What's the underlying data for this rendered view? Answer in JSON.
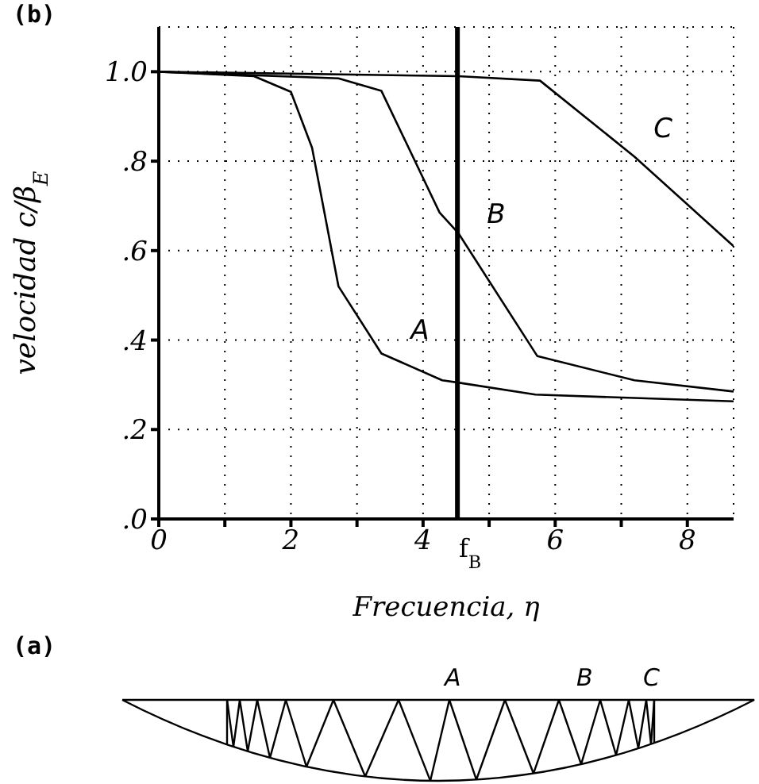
{
  "chart_data": {
    "type": "line",
    "xlabel": "Frecuencia, η",
    "ylabel": "velocidad c/β$_{E}$",
    "xlim": [
      0,
      8.7
    ],
    "xticks": [
      0,
      {
        "value": 1,
        "label": null
      },
      2,
      {
        "value": 3,
        "label": null
      },
      {
        "value": 4,
        "label": "4"
      },
      {
        "value": 5,
        "label": null
      },
      6,
      {
        "value": 7,
        "label": null
      },
      8
    ],
    "ylim": [
      0,
      1.1
    ],
    "yticks": [
      {
        "value": 0,
        "label": ".0"
      },
      {
        "value": 0.2,
        "label": ".2"
      },
      {
        "value": 0.4,
        "label": ".4"
      },
      {
        "value": 0.6,
        "label": ".6"
      },
      {
        "value": 0.8,
        "label": ".8"
      },
      {
        "value": 1.0,
        "label": "1.0"
      }
    ],
    "series": [
      {
        "name": "A",
        "color": "#000000",
        "x": [
          0,
          1.44,
          2.0,
          2.32,
          2.72,
          3.37,
          4.29,
          4.53,
          5.7,
          8.7
        ],
        "values": [
          1.0,
          0.99,
          0.955,
          0.83,
          0.52,
          0.37,
          0.31,
          0.305,
          0.278,
          0.263
        ]
      },
      {
        "name": "B",
        "color": "#000000",
        "x": [
          0,
          2.72,
          3.37,
          4.25,
          4.53,
          5.73,
          7.2,
          8.7
        ],
        "values": [
          1.0,
          0.985,
          0.957,
          0.685,
          0.64,
          0.364,
          0.31,
          0.285
        ]
      },
      {
        "name": "C",
        "color": "#000000",
        "x": [
          0,
          4.53,
          5.77,
          7.2,
          8.7
        ],
        "values": [
          1.0,
          0.99,
          0.98,
          0.81,
          0.61
        ]
      }
    ],
    "ref_lines": [
      {
        "axis": "x",
        "value": 4.52,
        "label": "f$_{B}$",
        "color": "#000000"
      }
    ],
    "annotations": [
      "(b)",
      "(a)",
      "A",
      "B",
      "C"
    ],
    "grid": true,
    "legend": false,
    "marker": "none",
    "line_style": "solid"
  }
}
